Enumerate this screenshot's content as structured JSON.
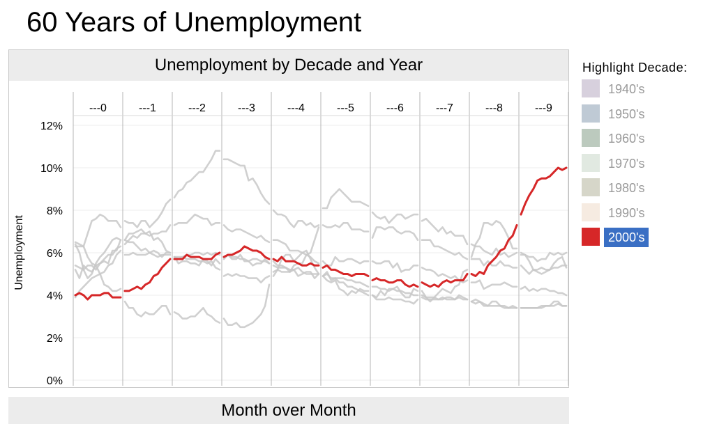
{
  "page": {
    "title": "60 Years of Unemployment"
  },
  "footer": {
    "label": "Month over Month"
  },
  "legend": {
    "title": "Highlight Decade:",
    "selected_index": 6,
    "items": [
      {
        "label": "1940's",
        "color": "#d7d0dd"
      },
      {
        "label": "1950's",
        "color": "#bfcad5"
      },
      {
        "label": "1960's",
        "color": "#bccabe"
      },
      {
        "label": "1970's",
        "color": "#e1e9e1"
      },
      {
        "label": "1980's",
        "color": "#d6d6c9"
      },
      {
        "label": "1990's",
        "color": "#f6ebe1"
      },
      {
        "label": "2000's",
        "color": "#d62728"
      }
    ]
  },
  "chart_data": {
    "type": "line",
    "title": "Unemployment by Decade and Year",
    "ylabel": "Unemployment",
    "xlabel": "Month over Month",
    "ylim": [
      0,
      12.5
    ],
    "y_ticks": [
      0,
      2,
      4,
      6,
      8,
      10,
      12
    ],
    "y_tick_labels": [
      "0%",
      "2%",
      "4%",
      "6%",
      "8%",
      "10%",
      "12%"
    ],
    "panels": [
      "---0",
      "---1",
      "---2",
      "---3",
      "---4",
      "---5",
      "---6",
      "---7",
      "---8",
      "---9"
    ],
    "months_per_panel": 12,
    "grid": true,
    "highlight_color": "#d62728",
    "background_series_color": "#c8c8c8",
    "series": [
      {
        "name": "2000's",
        "highlight": true,
        "values_by_year": [
          [
            4.0,
            4.1,
            4.0,
            3.8,
            4.0,
            4.0,
            4.0,
            4.1,
            4.1,
            3.9,
            3.9,
            3.9
          ],
          [
            4.2,
            4.2,
            4.3,
            4.4,
            4.3,
            4.5,
            4.6,
            4.9,
            5.0,
            5.3,
            5.5,
            5.7
          ],
          [
            5.7,
            5.7,
            5.7,
            5.9,
            5.8,
            5.8,
            5.8,
            5.7,
            5.7,
            5.7,
            5.9,
            6.0
          ],
          [
            5.8,
            5.9,
            5.9,
            6.0,
            6.1,
            6.3,
            6.2,
            6.1,
            6.1,
            6.0,
            5.8,
            5.7
          ],
          [
            5.7,
            5.6,
            5.8,
            5.6,
            5.6,
            5.6,
            5.5,
            5.4,
            5.4,
            5.5,
            5.4,
            5.4
          ],
          [
            5.3,
            5.4,
            5.2,
            5.2,
            5.1,
            5.0,
            5.0,
            4.9,
            5.0,
            5.0,
            5.0,
            4.9
          ],
          [
            4.7,
            4.8,
            4.7,
            4.7,
            4.6,
            4.6,
            4.7,
            4.7,
            4.5,
            4.4,
            4.5,
            4.4
          ],
          [
            4.6,
            4.5,
            4.4,
            4.5,
            4.4,
            4.6,
            4.7,
            4.6,
            4.7,
            4.7,
            4.7,
            5.0
          ],
          [
            5.0,
            4.9,
            5.1,
            5.0,
            5.4,
            5.6,
            5.8,
            6.1,
            6.2,
            6.6,
            6.8,
            7.3
          ],
          [
            7.8,
            8.3,
            8.7,
            9.0,
            9.4,
            9.5,
            9.5,
            9.6,
            9.8,
            10.0,
            9.9,
            10.0
          ]
        ]
      },
      {
        "name": "1940's",
        "values_by_year": [
          [
            6.4,
            6.0,
            5.2,
            4.8,
            5.0,
            5.5,
            5.8,
            6.0,
            6.3,
            6.6,
            6.7,
            6.6
          ],
          [
            6.6,
            6.5,
            6.5,
            6.3,
            6.1,
            6.2,
            6.0,
            5.9,
            5.8,
            5.9,
            5.9,
            5.9
          ],
          [
            5.8,
            5.8,
            5.8,
            5.9,
            5.9,
            6.0,
            6.0,
            5.9,
            6.0,
            5.9,
            6.0,
            5.9
          ],
          [
            5.8,
            5.9,
            5.8,
            5.8,
            5.7,
            5.7,
            5.6,
            5.7,
            5.7,
            5.6,
            5.6,
            5.5
          ],
          [
            5.4,
            5.3,
            5.3,
            5.3,
            5.2,
            5.2,
            5.3,
            5.1,
            5.0,
            5.0,
            5.0,
            5.0
          ],
          [
            4.9,
            5.0,
            4.8,
            4.8,
            4.8,
            4.8,
            4.7,
            4.7,
            4.6,
            4.6,
            4.5,
            4.4
          ],
          [
            4.4,
            4.4,
            4.3,
            4.3,
            4.2,
            4.3,
            4.2,
            4.2,
            4.1,
            4.1,
            4.0,
            4.0
          ],
          [
            4.0,
            3.9,
            3.9,
            3.9,
            3.8,
            3.8,
            3.9,
            3.9,
            3.8,
            3.9,
            3.8,
            3.8
          ],
          [
            3.7,
            3.6,
            3.7,
            3.6,
            3.5,
            3.5,
            3.5,
            3.5,
            3.5,
            3.4,
            3.5,
            3.4
          ],
          [
            3.4,
            3.4,
            3.4,
            3.4,
            3.4,
            3.4,
            3.5,
            3.5,
            3.5,
            3.6,
            3.5,
            3.5
          ]
        ]
      },
      {
        "name": "1950's",
        "values_by_year": [
          [
            6.5,
            6.4,
            6.3,
            5.8,
            5.5,
            5.4,
            5.0,
            4.5,
            4.4,
            4.2,
            4.2,
            4.3
          ],
          [
            3.7,
            3.4,
            3.4,
            3.1,
            3.0,
            3.2,
            3.1,
            3.1,
            3.3,
            3.5,
            3.5,
            3.1
          ],
          [
            3.2,
            3.1,
            2.9,
            2.9,
            3.0,
            3.0,
            3.2,
            3.4,
            3.1,
            3.0,
            2.8,
            2.7
          ],
          [
            2.9,
            2.6,
            2.6,
            2.7,
            2.5,
            2.5,
            2.6,
            2.7,
            2.9,
            3.1,
            3.5,
            4.5
          ],
          [
            4.9,
            5.2,
            5.7,
            5.9,
            5.9,
            5.6,
            5.8,
            6.0,
            6.1,
            5.7,
            5.3,
            5.0
          ],
          [
            4.9,
            4.7,
            4.6,
            4.7,
            4.3,
            4.2,
            4.0,
            4.2,
            4.1,
            4.3,
            4.2,
            4.2
          ],
          [
            4.0,
            3.9,
            4.2,
            4.0,
            4.3,
            4.3,
            4.4,
            4.1,
            3.9,
            3.9,
            4.3,
            4.2
          ],
          [
            4.2,
            3.9,
            3.7,
            3.9,
            4.1,
            4.3,
            4.2,
            4.1,
            4.4,
            4.5,
            5.1,
            5.2
          ],
          [
            5.8,
            6.4,
            6.7,
            7.4,
            7.4,
            7.3,
            7.5,
            7.4,
            7.1,
            6.7,
            6.2,
            6.2
          ],
          [
            6.0,
            5.9,
            5.6,
            5.2,
            5.1,
            5.0,
            5.1,
            5.2,
            5.5,
            5.7,
            5.8,
            5.3
          ]
        ]
      },
      {
        "name": "1960's",
        "values_by_year": [
          [
            5.2,
            4.8,
            5.4,
            5.2,
            5.1,
            5.4,
            5.5,
            5.6,
            5.5,
            6.1,
            6.1,
            6.6
          ],
          [
            6.6,
            6.9,
            6.9,
            7.0,
            7.1,
            6.9,
            7.0,
            6.6,
            6.7,
            6.5,
            6.1,
            6.0
          ],
          [
            5.8,
            5.5,
            5.6,
            5.6,
            5.5,
            5.5,
            5.4,
            5.7,
            5.6,
            5.4,
            5.7,
            5.5
          ],
          [
            5.7,
            5.9,
            5.7,
            5.7,
            5.9,
            5.6,
            5.6,
            5.4,
            5.5,
            5.5,
            5.7,
            5.5
          ],
          [
            5.6,
            5.4,
            5.4,
            5.3,
            5.1,
            5.2,
            4.9,
            5.0,
            5.1,
            5.1,
            4.8,
            5.0
          ],
          [
            4.9,
            5.1,
            4.7,
            4.8,
            4.6,
            4.6,
            4.4,
            4.4,
            4.3,
            4.2,
            4.1,
            4.0
          ],
          [
            4.0,
            3.8,
            3.8,
            3.8,
            3.9,
            3.8,
            3.8,
            3.8,
            3.7,
            3.7,
            3.6,
            3.8
          ],
          [
            3.9,
            3.8,
            3.8,
            3.8,
            3.8,
            3.9,
            3.8,
            3.8,
            3.8,
            4.0,
            3.9,
            3.8
          ],
          [
            3.7,
            3.8,
            3.7,
            3.5,
            3.5,
            3.7,
            3.7,
            3.5,
            3.4,
            3.4,
            3.4,
            3.4
          ],
          [
            3.4,
            3.4,
            3.4,
            3.4,
            3.4,
            3.5,
            3.5,
            3.5,
            3.7,
            3.7,
            3.5,
            3.5
          ]
        ]
      },
      {
        "name": "1970's",
        "values_by_year": [
          [
            3.9,
            4.2,
            4.4,
            4.6,
            4.8,
            4.9,
            5.0,
            5.1,
            5.4,
            5.5,
            5.9,
            6.1
          ],
          [
            5.9,
            5.9,
            6.0,
            5.9,
            5.9,
            5.9,
            6.0,
            6.1,
            6.0,
            5.8,
            6.0,
            6.0
          ],
          [
            5.8,
            5.7,
            5.8,
            5.7,
            5.7,
            5.7,
            5.6,
            5.6,
            5.5,
            5.6,
            5.3,
            5.2
          ],
          [
            4.9,
            5.0,
            4.9,
            5.0,
            4.9,
            4.9,
            4.8,
            4.8,
            4.8,
            4.6,
            4.8,
            4.9
          ],
          [
            5.1,
            5.2,
            5.1,
            5.1,
            5.1,
            5.4,
            5.5,
            5.5,
            5.9,
            6.0,
            6.6,
            7.2
          ],
          [
            8.1,
            8.1,
            8.6,
            8.8,
            9.0,
            8.8,
            8.6,
            8.4,
            8.4,
            8.4,
            8.3,
            8.2
          ],
          [
            7.9,
            7.7,
            7.6,
            7.7,
            7.4,
            7.6,
            7.8,
            7.8,
            7.6,
            7.7,
            7.8,
            7.8
          ],
          [
            7.5,
            7.6,
            7.4,
            7.2,
            7.0,
            7.2,
            6.9,
            7.0,
            6.8,
            6.8,
            6.8,
            6.4
          ],
          [
            6.4,
            6.3,
            6.3,
            6.1,
            6.0,
            5.9,
            6.2,
            5.9,
            6.0,
            5.8,
            5.9,
            6.0
          ],
          [
            5.9,
            5.9,
            5.8,
            5.8,
            5.6,
            5.7,
            5.7,
            6.0,
            5.9,
            6.0,
            5.9,
            6.0
          ]
        ]
      },
      {
        "name": "1980's",
        "values_by_year": [
          [
            6.3,
            6.3,
            6.3,
            6.9,
            7.5,
            7.6,
            7.8,
            7.7,
            7.5,
            7.5,
            7.5,
            7.2
          ],
          [
            7.5,
            7.4,
            7.4,
            7.2,
            7.5,
            7.5,
            7.2,
            7.4,
            7.6,
            7.9,
            8.3,
            8.5
          ],
          [
            8.6,
            8.9,
            9.0,
            9.3,
            9.4,
            9.6,
            9.8,
            9.8,
            10.1,
            10.4,
            10.8,
            10.8
          ],
          [
            10.4,
            10.4,
            10.3,
            10.2,
            10.1,
            10.1,
            9.4,
            9.5,
            9.2,
            8.8,
            8.5,
            8.3
          ],
          [
            8.0,
            7.8,
            7.8,
            7.7,
            7.4,
            7.2,
            7.5,
            7.5,
            7.3,
            7.4,
            7.2,
            7.3
          ],
          [
            7.3,
            7.2,
            7.2,
            7.3,
            7.2,
            7.4,
            7.4,
            7.1,
            7.1,
            7.1,
            7.0,
            7.0
          ],
          [
            6.7,
            7.2,
            7.2,
            7.1,
            7.2,
            7.2,
            7.0,
            6.9,
            7.0,
            7.0,
            6.9,
            6.6
          ],
          [
            6.6,
            6.6,
            6.6,
            6.3,
            6.3,
            6.2,
            6.1,
            6.0,
            5.9,
            6.0,
            5.8,
            5.7
          ],
          [
            5.7,
            5.7,
            5.7,
            5.4,
            5.6,
            5.4,
            5.4,
            5.6,
            5.4,
            5.4,
            5.3,
            5.3
          ],
          [
            5.4,
            5.2,
            5.0,
            5.2,
            5.2,
            5.3,
            5.2,
            5.2,
            5.3,
            5.3,
            5.4,
            5.4
          ]
        ]
      },
      {
        "name": "1990's",
        "values_by_year": [
          [
            5.4,
            5.3,
            5.2,
            5.4,
            5.4,
            5.2,
            5.5,
            5.7,
            5.9,
            5.9,
            6.2,
            6.3
          ],
          [
            6.4,
            6.6,
            6.8,
            6.7,
            6.9,
            6.9,
            6.8,
            6.9,
            6.9,
            7.0,
            7.0,
            7.3
          ],
          [
            7.3,
            7.4,
            7.4,
            7.4,
            7.6,
            7.8,
            7.7,
            7.6,
            7.6,
            7.3,
            7.4,
            7.4
          ],
          [
            7.3,
            7.1,
            7.0,
            7.1,
            7.1,
            7.0,
            6.9,
            6.8,
            6.7,
            6.8,
            6.6,
            6.5
          ],
          [
            6.6,
            6.6,
            6.5,
            6.4,
            6.1,
            6.1,
            6.1,
            6.0,
            5.9,
            5.8,
            5.6,
            5.5
          ],
          [
            5.6,
            5.4,
            5.4,
            5.8,
            5.6,
            5.6,
            5.7,
            5.7,
            5.6,
            5.5,
            5.6,
            5.6
          ],
          [
            5.6,
            5.5,
            5.5,
            5.6,
            5.6,
            5.3,
            5.5,
            5.1,
            5.2,
            5.2,
            5.4,
            5.4
          ],
          [
            5.3,
            5.2,
            5.2,
            5.1,
            4.9,
            5.0,
            4.9,
            4.8,
            4.9,
            4.7,
            4.6,
            4.7
          ],
          [
            4.6,
            4.6,
            4.7,
            4.3,
            4.4,
            4.5,
            4.5,
            4.5,
            4.6,
            4.5,
            4.4,
            4.4
          ],
          [
            4.3,
            4.4,
            4.2,
            4.3,
            4.2,
            4.3,
            4.3,
            4.2,
            4.2,
            4.1,
            4.1,
            4.0
          ]
        ]
      }
    ]
  }
}
